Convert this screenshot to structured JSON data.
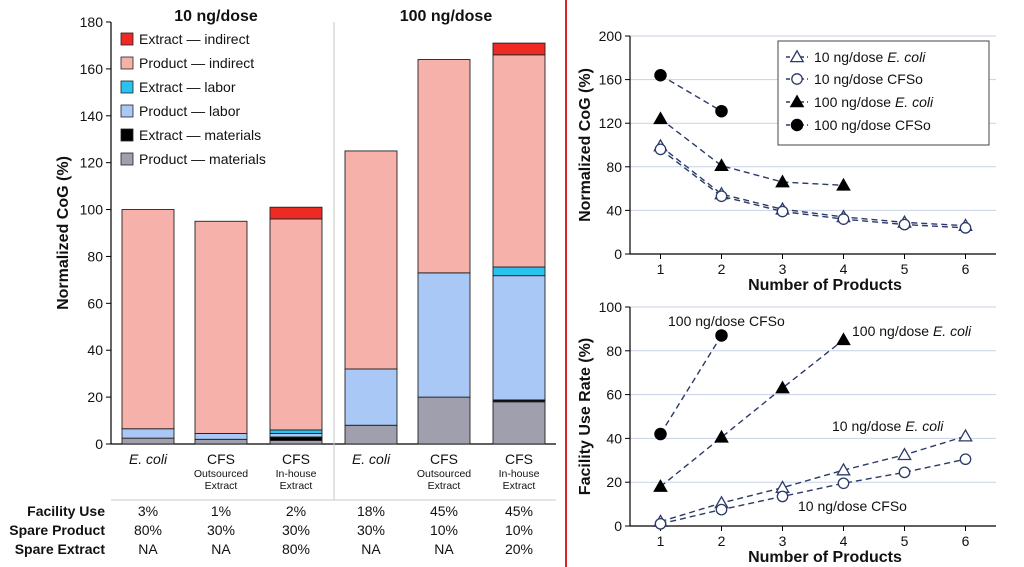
{
  "colors": {
    "extract_indirect": "#ee2a24",
    "product_indirect": "#f7b1ab",
    "extract_labor": "#29c3ef",
    "product_labor": "#a9c8f6",
    "extract_materials": "#000000",
    "product_materials": "#9f9fae",
    "divider": "#d6252a",
    "line": "#2b3a67",
    "grid": "#c7d1e6"
  },
  "chart_data": [
    {
      "type": "bar",
      "stacked": true,
      "ylabel": "Normalized CoG (%)",
      "ylim": [
        0,
        180
      ],
      "yticks": [
        0,
        20,
        40,
        60,
        80,
        100,
        120,
        140,
        160,
        180
      ],
      "group_labels": [
        "10 ng/dose",
        "100 ng/dose"
      ],
      "categories": [
        {
          "main": "E. coli",
          "italic": true,
          "sub1": "",
          "sub2": ""
        },
        {
          "main": "CFS",
          "italic": false,
          "sub1": "Outsourced",
          "sub2": "Extract"
        },
        {
          "main": "CFS",
          "italic": false,
          "sub1": "In-house",
          "sub2": "Extract"
        },
        {
          "main": "E. coli",
          "italic": true,
          "sub1": "",
          "sub2": ""
        },
        {
          "main": "CFS",
          "italic": false,
          "sub1": "Outsourced",
          "sub2": "Extract"
        },
        {
          "main": "CFS",
          "italic": false,
          "sub1": "In-house",
          "sub2": "Extract"
        }
      ],
      "series": [
        {
          "name": "Product — materials",
          "color_key": "product_materials",
          "values": [
            2.5,
            2,
            1.5,
            8,
            20,
            18
          ]
        },
        {
          "name": "Extract — materials",
          "color_key": "extract_materials",
          "values": [
            0,
            0,
            1.5,
            0,
            0,
            0.8
          ]
        },
        {
          "name": "Product — labor",
          "color_key": "product_labor",
          "values": [
            4,
            2.5,
            1.5,
            24,
            53,
            53
          ]
        },
        {
          "name": "Extract — labor",
          "color_key": "extract_labor",
          "values": [
            0,
            0,
            1.5,
            0,
            0,
            3.7
          ]
        },
        {
          "name": "Product — indirect",
          "color_key": "product_indirect",
          "values": [
            93.5,
            90.5,
            90,
            93,
            91,
            90.5
          ]
        },
        {
          "name": "Extract — indirect",
          "color_key": "extract_indirect",
          "values": [
            0,
            0,
            5,
            0,
            0,
            5
          ]
        }
      ],
      "legend_order": [
        "Extract — indirect",
        "Product — indirect",
        "Extract — labor",
        "Product — labor",
        "Extract — materials",
        "Product — materials"
      ],
      "table": {
        "rows": [
          {
            "label": "Facility Use",
            "values": [
              "3%",
              "1%",
              "2%",
              "18%",
              "45%",
              "45%"
            ]
          },
          {
            "label": "Spare Product",
            "values": [
              "80%",
              "30%",
              "30%",
              "30%",
              "10%",
              "10%"
            ]
          },
          {
            "label": "Spare Extract",
            "values": [
              "NA",
              "NA",
              "80%",
              "NA",
              "NA",
              "20%"
            ]
          }
        ]
      }
    },
    {
      "type": "line",
      "xlabel": "Number of Products",
      "ylabel": "Normalized CoG (%)",
      "xlim": [
        0.5,
        6.5
      ],
      "ylim": [
        0,
        200
      ],
      "xticks": [
        1,
        2,
        3,
        4,
        5,
        6
      ],
      "yticks": [
        0,
        40,
        80,
        120,
        160,
        200
      ],
      "series": [
        {
          "name": "10 ng/dose",
          "name_italic": "E. coli",
          "marker": "triangle-open",
          "x": [
            1,
            2,
            3,
            4,
            5,
            6
          ],
          "y": [
            99,
            55,
            41,
            34,
            29,
            26
          ]
        },
        {
          "name": "10 ng/dose CFSo",
          "name_italic": "",
          "marker": "circle-open",
          "x": [
            1,
            2,
            3,
            4,
            5,
            6
          ],
          "y": [
            96,
            53,
            39,
            32,
            27,
            24
          ]
        },
        {
          "name": "100 ng/dose",
          "name_italic": "E. coli",
          "marker": "triangle-filled",
          "x": [
            1,
            2,
            3,
            4
          ],
          "y": [
            124,
            81,
            66,
            63
          ]
        },
        {
          "name": "100 ng/dose CFSo",
          "name_italic": "",
          "marker": "circle-filled",
          "x": [
            1,
            2
          ],
          "y": [
            164,
            131
          ]
        }
      ]
    },
    {
      "type": "line",
      "xlabel": "Number of Products",
      "ylabel": "Facility Use Rate (%)",
      "xlim": [
        0.5,
        6.5
      ],
      "ylim": [
        0,
        100
      ],
      "xticks": [
        1,
        2,
        3,
        4,
        5,
        6
      ],
      "yticks": [
        0,
        20,
        40,
        60,
        80,
        100
      ],
      "series": [
        {
          "name": "10 ng/dose",
          "name_italic": "E. coli",
          "marker": "triangle-open",
          "x": [
            1,
            2,
            3,
            4,
            5,
            6
          ],
          "y": [
            2,
            10.5,
            17.5,
            25.5,
            32.5,
            41
          ]
        },
        {
          "name": "10 ng/dose CFSo",
          "name_italic": "",
          "marker": "circle-open",
          "x": [
            1,
            2,
            3,
            4,
            5,
            6
          ],
          "y": [
            1,
            7.5,
            13.5,
            19.5,
            24.5,
            30.5
          ]
        },
        {
          "name": "100 ng/dose",
          "name_italic": "E. coli",
          "marker": "triangle-filled",
          "x": [
            1,
            2,
            3,
            4
          ],
          "y": [
            18,
            40.5,
            63,
            85
          ]
        },
        {
          "name": "100 ng/dose CFSo",
          "name_italic": "",
          "marker": "circle-filled",
          "x": [
            1,
            2
          ],
          "y": [
            42,
            87
          ]
        }
      ]
    }
  ]
}
